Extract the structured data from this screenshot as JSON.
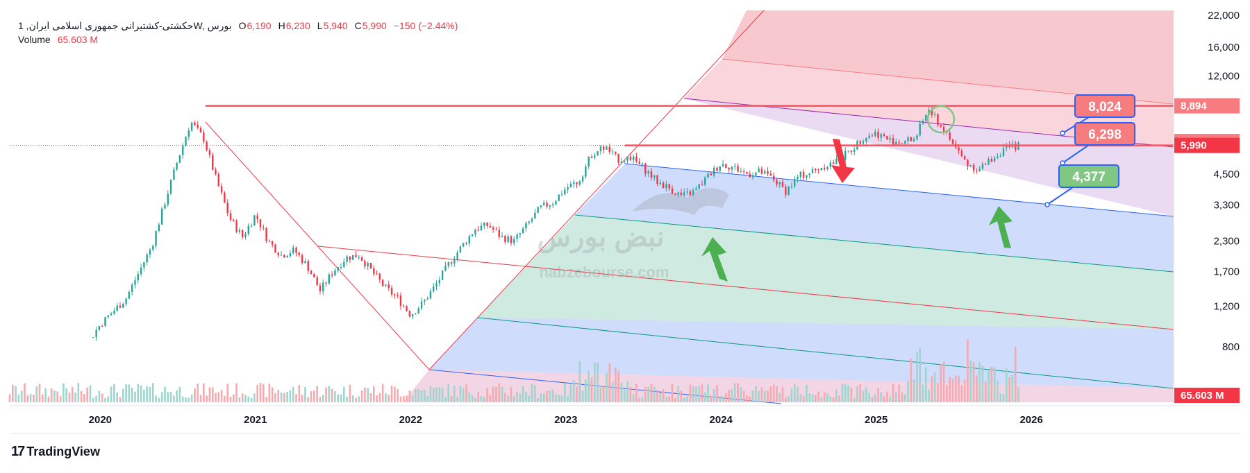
{
  "legend": {
    "symbol": "حکشتی-کشتیرانی جمهوری اسلامی ایران, 1W, بورس",
    "open_label": "O",
    "open": "6,190",
    "high_label": "H",
    "high": "6,230",
    "low_label": "L",
    "low": "5,940",
    "close_label": "C",
    "close": "5,990",
    "change": "−150 (−2.44%)",
    "volume_label": "Volume",
    "volume": "65.603 M"
  },
  "watermark": {
    "site": "nabzebourse.com",
    "logo_text": "نبض بورس"
  },
  "brand": {
    "logo_mark": "17",
    "name": "TradingView"
  },
  "colors": {
    "up": "#26a69a",
    "down": "#f23645",
    "resistance": "#f7525f",
    "callout_red": "#f77c80",
    "callout_green": "#81c784",
    "callout_border": "#2962ff"
  },
  "chart_data": {
    "type": "candlestick",
    "scale": "log",
    "ylim": [
      800,
      22000
    ],
    "xlim": [
      "2019-06",
      "2026-12"
    ],
    "y_ticks": [
      "22,000",
      "16,000",
      "12,000",
      "8,894",
      "6,225",
      "5,990",
      "4,500",
      "3,300",
      "2,300",
      "1,700",
      "1,200",
      "800"
    ],
    "x_ticks": [
      "2020",
      "2021",
      "2022",
      "2023",
      "2024",
      "2025",
      "2026"
    ],
    "price_tags": [
      {
        "label": "8,894",
        "value": 8894,
        "color": "#f77c80"
      },
      {
        "label": "6,225",
        "value": 6225,
        "color": "#f77c80"
      },
      {
        "label": "5,990",
        "value": 5990,
        "color": "#f23645"
      },
      {
        "label": "65.603 M",
        "value": 65.603,
        "color": "#f23645",
        "pane": "volume"
      }
    ],
    "callouts": [
      {
        "label": "8,024",
        "value": 8024,
        "color": "#f77c80"
      },
      {
        "label": "6,298",
        "value": 6298,
        "color": "#f77c80"
      },
      {
        "label": "4,377",
        "value": 4377,
        "color": "#81c784"
      }
    ],
    "horizontal_lines": [
      8894,
      5990
    ],
    "price_path": [
      [
        "2019-06",
        820
      ],
      [
        "2019-12",
        830
      ],
      [
        "2020-01",
        1000
      ],
      [
        "2020-03",
        1300
      ],
      [
        "2020-05",
        2200
      ],
      [
        "2020-06",
        3400
      ],
      [
        "2020-07",
        5200
      ],
      [
        "2020-08",
        7600
      ],
      [
        "2020-09",
        6400
      ],
      [
        "2020-10",
        4200
      ],
      [
        "2020-11",
        2900
      ],
      [
        "2020-12",
        2400
      ],
      [
        "2021-01",
        3000
      ],
      [
        "2021-02",
        2300
      ],
      [
        "2021-03",
        2000
      ],
      [
        "2021-04",
        2100
      ],
      [
        "2021-05",
        1800
      ],
      [
        "2021-06",
        1400
      ],
      [
        "2021-07",
        1700
      ],
      [
        "2021-08",
        1950
      ],
      [
        "2021-09",
        2000
      ],
      [
        "2021-10",
        1700
      ],
      [
        "2021-11",
        1450
      ],
      [
        "2021-12",
        1300
      ],
      [
        "2022-01",
        1100
      ],
      [
        "2022-02",
        1250
      ],
      [
        "2022-03",
        1500
      ],
      [
        "2022-04",
        1850
      ],
      [
        "2022-05",
        2200
      ],
      [
        "2022-06",
        2600
      ],
      [
        "2022-07",
        2700
      ],
      [
        "2022-08",
        2400
      ],
      [
        "2022-09",
        2300
      ],
      [
        "2022-10",
        2700
      ],
      [
        "2022-11",
        3200
      ],
      [
        "2022-12",
        3400
      ],
      [
        "2023-01",
        3900
      ],
      [
        "2023-02",
        4200
      ],
      [
        "2023-03",
        5500
      ],
      [
        "2023-04",
        5900
      ],
      [
        "2023-05",
        5200
      ],
      [
        "2023-06",
        5300
      ],
      [
        "2023-07",
        4800
      ],
      [
        "2023-08",
        4200
      ],
      [
        "2023-09",
        3900
      ],
      [
        "2023-10",
        3600
      ],
      [
        "2023-11",
        3800
      ],
      [
        "2023-12",
        4400
      ],
      [
        "2024-01",
        5000
      ],
      [
        "2024-02",
        4800
      ],
      [
        "2024-03",
        4500
      ],
      [
        "2024-04",
        4600
      ],
      [
        "2024-05",
        4300
      ],
      [
        "2024-06",
        3800
      ],
      [
        "2024-07",
        4400
      ],
      [
        "2024-08",
        4600
      ],
      [
        "2024-09",
        4900
      ],
      [
        "2024-10",
        5100
      ],
      [
        "2024-11",
        5700
      ],
      [
        "2024-12",
        6500
      ],
      [
        "2025-01",
        6800
      ],
      [
        "2025-02",
        6300
      ],
      [
        "2025-03",
        6200
      ],
      [
        "2025-04",
        6400
      ],
      [
        "2025-05",
        8600
      ],
      [
        "2025-06",
        7300
      ],
      [
        "2025-07",
        6000
      ],
      [
        "2025-08",
        5000
      ],
      [
        "2025-09",
        4700
      ],
      [
        "2025-10",
        5300
      ],
      [
        "2025-11",
        5800
      ],
      [
        "2025-12",
        5990
      ]
    ]
  }
}
